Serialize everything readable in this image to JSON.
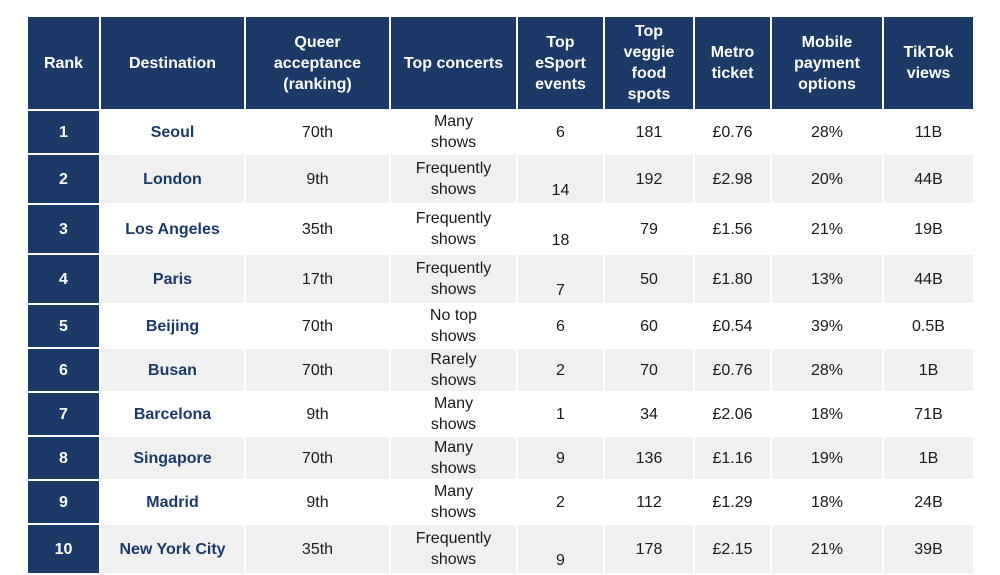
{
  "headers": {
    "rank": "Rank",
    "destination": "Destination",
    "queer": "Queer acceptance (ranking)",
    "concerts": "Top concerts",
    "esport": "Top eSport events",
    "veggie": "Top veggie food spots",
    "metro": "Metro ticket",
    "mobile": "Mobile payment options",
    "tiktok": "TikTok views"
  },
  "rows": [
    {
      "rank": "1",
      "destination": "Seoul",
      "queer": "70th",
      "concerts": "Many shows",
      "esport": "6",
      "veggie": "181",
      "metro": "£0.76",
      "mobile": "28%",
      "tiktok": "11B"
    },
    {
      "rank": "2",
      "destination": "London",
      "queer": "9th",
      "concerts": "Frequently shows",
      "esport": "14",
      "veggie": "192",
      "metro": "£2.98",
      "mobile": "20%",
      "tiktok": "44B"
    },
    {
      "rank": "3",
      "destination": "Los Angeles",
      "queer": "35th",
      "concerts": "Frequently shows",
      "esport": "18",
      "veggie": "79",
      "metro": "£1.56",
      "mobile": "21%",
      "tiktok": "19B"
    },
    {
      "rank": "4",
      "destination": "Paris",
      "queer": "17th",
      "concerts": "Frequently shows",
      "esport": "7",
      "veggie": "50",
      "metro": "£1.80",
      "mobile": "13%",
      "tiktok": "44B"
    },
    {
      "rank": "5",
      "destination": "Beijing",
      "queer": "70th",
      "concerts": "No top shows",
      "esport": "6",
      "veggie": "60",
      "metro": "£0.54",
      "mobile": "39%",
      "tiktok": "0.5B"
    },
    {
      "rank": "6",
      "destination": "Busan",
      "queer": "70th",
      "concerts": "Rarely shows",
      "esport": "2",
      "veggie": "70",
      "metro": "£0.76",
      "mobile": "28%",
      "tiktok": "1B"
    },
    {
      "rank": "7",
      "destination": "Barcelona",
      "queer": "9th",
      "concerts": "Many shows",
      "esport": "1",
      "veggie": "34",
      "metro": "£2.06",
      "mobile": "18%",
      "tiktok": "71B"
    },
    {
      "rank": "8",
      "destination": "Singapore",
      "queer": "70th",
      "concerts": "Many shows",
      "esport": "9",
      "veggie": "136",
      "metro": "£1.16",
      "mobile": "19%",
      "tiktok": "1B"
    },
    {
      "rank": "9",
      "destination": "Madrid",
      "queer": "9th",
      "concerts": "Many shows",
      "esport": "2",
      "veggie": "112",
      "metro": "£1.29",
      "mobile": "18%",
      "tiktok": "24B"
    },
    {
      "rank": "10",
      "destination": "New York City",
      "queer": "35th",
      "concerts": "Frequently shows",
      "esport": "9",
      "veggie": "178",
      "metro": "£2.15",
      "mobile": "21%",
      "tiktok": "39B"
    }
  ]
}
